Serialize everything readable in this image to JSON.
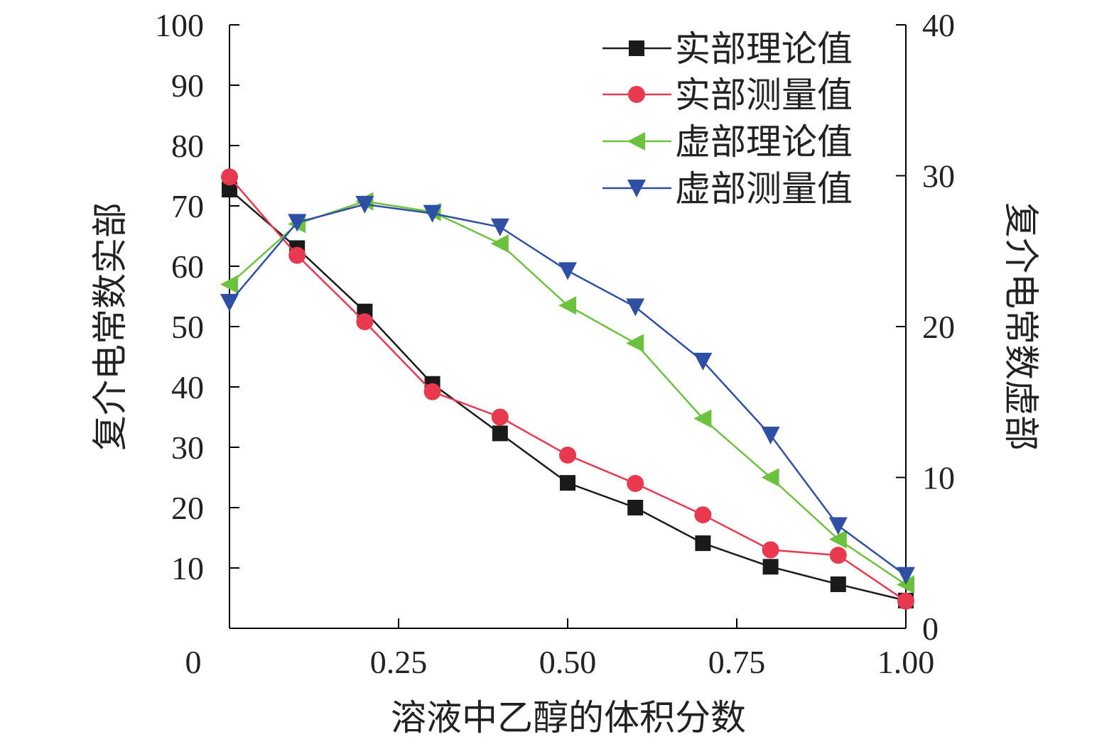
{
  "chart_data": {
    "type": "line",
    "xlabel": "溶液中乙醇的体积分数",
    "ylabel_left": "复介电常数实部",
    "ylabel_right": "复介电常数虚部",
    "xlim": [
      0,
      1.0
    ],
    "ylim_left": [
      0,
      100
    ],
    "ylim_right": [
      0,
      40
    ],
    "x_ticks": [
      0.25,
      0.5,
      0.75,
      1.0
    ],
    "x_tick_labels": [
      "0.25",
      "0.50",
      "0.75",
      "1.00"
    ],
    "origin_label": "0",
    "y_left_ticks": [
      10,
      20,
      30,
      40,
      50,
      60,
      70,
      80,
      90,
      100
    ],
    "y_left_tick_labels": [
      "10",
      "20",
      "30",
      "40",
      "50",
      "60",
      "70",
      "80",
      "90",
      "100"
    ],
    "y_right_ticks": [
      0,
      10,
      20,
      30,
      40
    ],
    "y_right_tick_labels": [
      "0",
      "10",
      "20",
      "30",
      "40"
    ],
    "x": [
      0,
      0.1,
      0.2,
      0.3,
      0.4,
      0.5,
      0.6,
      0.7,
      0.8,
      0.9,
      1.0
    ],
    "legend_position": "top-right",
    "series": [
      {
        "name": "实部理论值",
        "axis": "left",
        "color": "#1a1a1a",
        "marker": "square",
        "values": [
          72.7,
          63.0,
          52.5,
          40.5,
          32.3,
          24.1,
          20.0,
          14.1,
          10.2,
          7.3,
          4.6
        ]
      },
      {
        "name": "实部测量值",
        "axis": "left",
        "color": "#e83a4f",
        "marker": "circle",
        "values": [
          74.8,
          61.8,
          50.8,
          39.2,
          35.0,
          28.7,
          24.0,
          18.8,
          13.0,
          12.1,
          4.5
        ]
      },
      {
        "name": "虚部理论值",
        "axis": "right",
        "color": "#6cc23c",
        "marker": "triangle-left",
        "values": [
          22.8,
          26.8,
          28.3,
          27.6,
          25.5,
          21.4,
          18.9,
          13.9,
          10.0,
          5.9,
          2.9
        ]
      },
      {
        "name": "虚部测量值",
        "axis": "right",
        "color": "#2e4fa3",
        "marker": "triangle-down",
        "values": [
          21.6,
          26.9,
          28.1,
          27.5,
          26.6,
          23.7,
          21.3,
          17.7,
          12.8,
          6.8,
          3.5
        ]
      }
    ]
  }
}
